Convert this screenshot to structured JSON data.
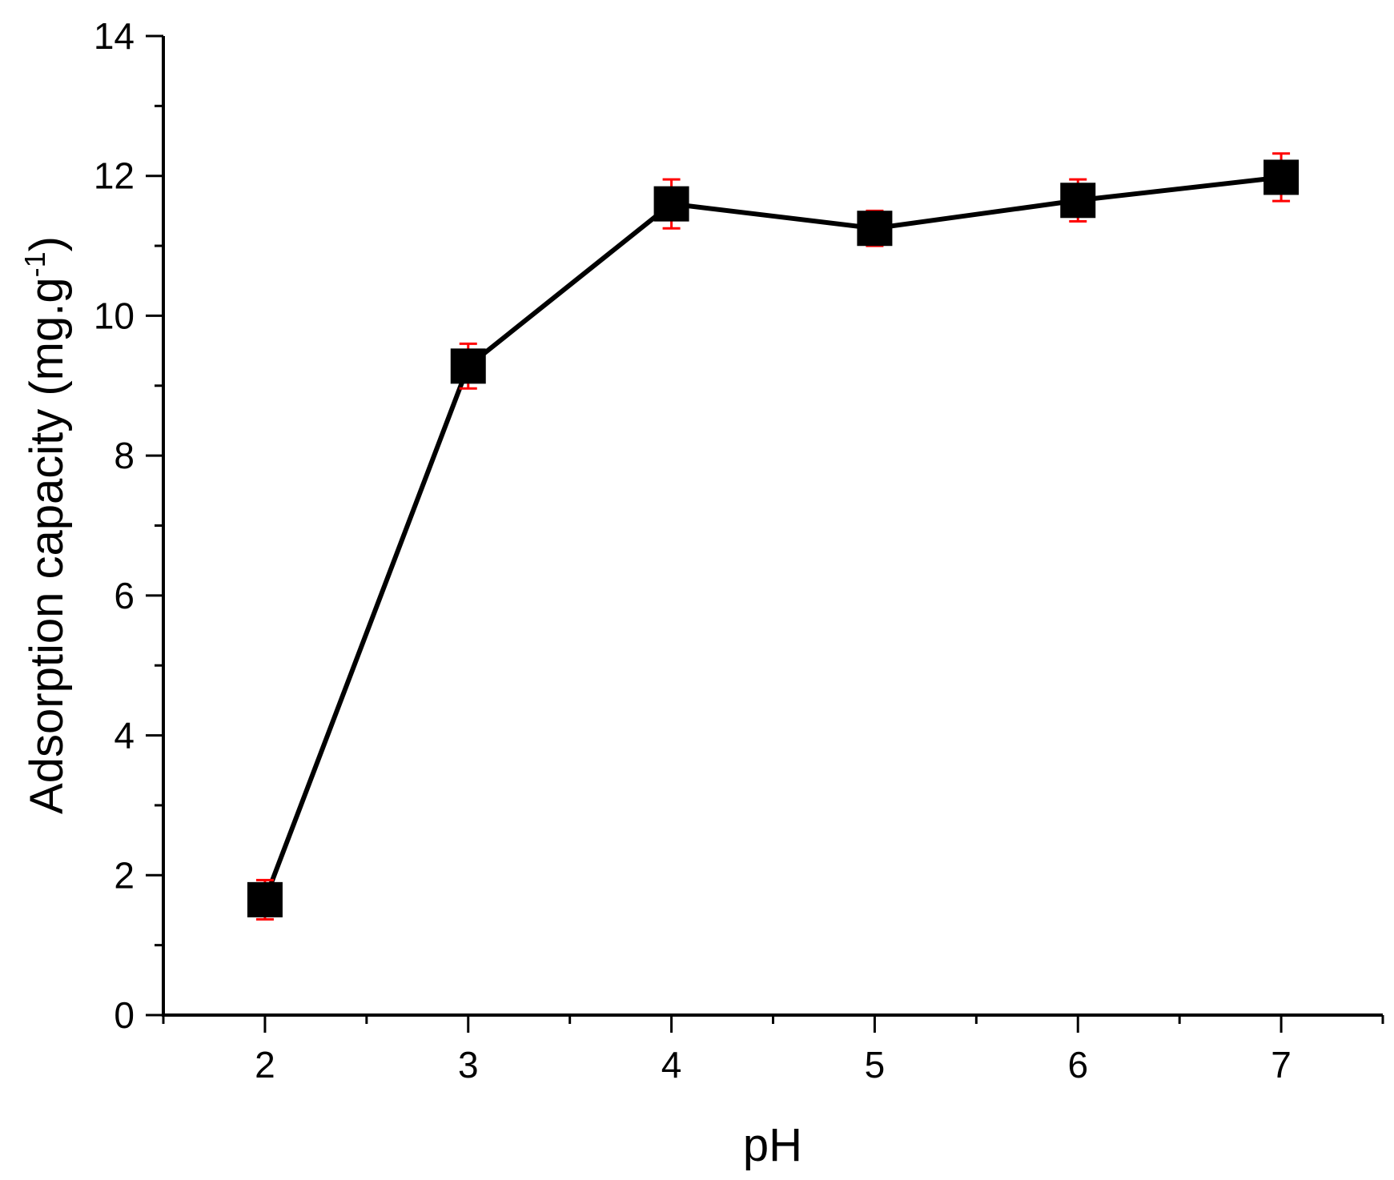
{
  "chart_data": {
    "type": "line",
    "xlabel": "pH",
    "ylabel_parts": [
      "Adsorption capacity (mg.g",
      "-1",
      ")"
    ],
    "xlim": [
      1.5,
      7.5
    ],
    "ylim": [
      0,
      14
    ],
    "x_ticks": [
      2,
      3,
      4,
      5,
      6,
      7
    ],
    "x_minor_ticks": [
      1.5,
      2.5,
      3.5,
      4.5,
      5.5,
      6.5,
      7.5
    ],
    "y_ticks": [
      0,
      2,
      4,
      6,
      8,
      10,
      12,
      14
    ],
    "y_minor_ticks": [
      1,
      3,
      5,
      7,
      9,
      11,
      13
    ],
    "grid": false,
    "legend": "none",
    "series": [
      {
        "x": [
          2,
          3,
          4,
          5,
          6,
          7
        ],
        "y": [
          1.65,
          9.28,
          11.6,
          11.25,
          11.65,
          11.98
        ],
        "error": [
          0.28,
          0.32,
          0.35,
          0.25,
          0.3,
          0.34
        ],
        "line_color": "#000000",
        "marker": "square",
        "marker_color": "#000000",
        "error_color": "#ff0000"
      }
    ]
  }
}
